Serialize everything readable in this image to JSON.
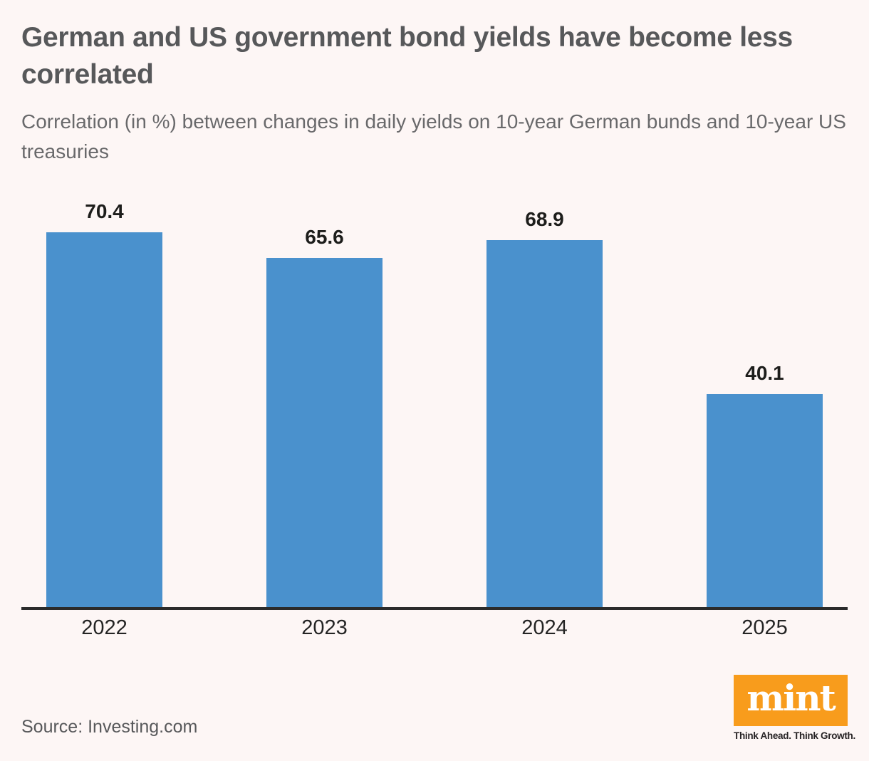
{
  "header": {
    "title": "German and US government bond yields have become less correlated",
    "subtitle": "Correlation (in %) between changes in daily yields on 10-year German bunds and 10-year US treasuries"
  },
  "chart_data": {
    "type": "bar",
    "categories": [
      "2022",
      "2023",
      "2024",
      "2025"
    ],
    "values": [
      70.4,
      65.6,
      68.9,
      40.1
    ],
    "value_labels": [
      "70.4",
      "65.6",
      "68.9",
      "40.1"
    ],
    "title": "German and US government bond yields have become less correlated",
    "xlabel": "",
    "ylabel": "",
    "ylim": [
      0,
      75
    ],
    "grid": false,
    "legend": "none",
    "data_labels_shown": true,
    "bar_color": "#4a91cd",
    "axis_color": "#2b2b2b",
    "label_color": "#1d1d1b"
  },
  "footer": {
    "source": "Source: Investing.com",
    "logo": {
      "text": "mint",
      "tagline": "Think Ahead. Think Growth.",
      "box_color": "#f89c1c",
      "text_color": "#ffffff"
    }
  },
  "colors": {
    "background": "#fdf6f5",
    "title": "#57585a",
    "subtitle": "#69696b",
    "bar": "#4a91cd",
    "axis": "#2b2b2b",
    "source_text": "#57585a",
    "logo_orange": "#f89c1c"
  }
}
